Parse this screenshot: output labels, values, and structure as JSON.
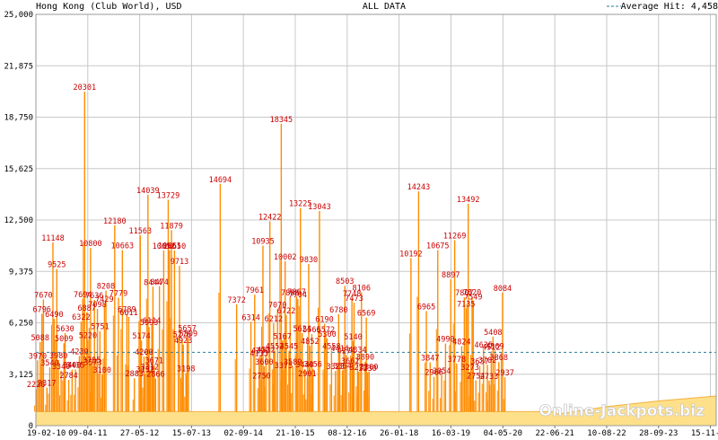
{
  "header": {
    "left_title": "Hong Kong (Club World), USD",
    "center_title": "ALL DATA",
    "legend_label": "Average Hit: 4,458"
  },
  "watermark": "Online-Jackpots.biz",
  "colors": {
    "background": "#ffffff",
    "grid": "#c8c8c8",
    "spike": "#ff8c00",
    "baseline_fill": "#ffe08a",
    "label": "#cc0000",
    "average_line": "#2a7d9c"
  },
  "chart_data": {
    "type": "area",
    "title": "ALL DATA",
    "subtitle": "Hong Kong (Club World), USD",
    "xlabel": "",
    "ylabel": "",
    "ylim": [
      0,
      25000
    ],
    "xlim": [
      "2010-02-19",
      "2024-12-31"
    ],
    "grid": true,
    "legend_placement": "top-right",
    "y_ticks": [
      "0",
      "3,125",
      "6,250",
      "9,375",
      "12,500",
      "15,625",
      "18,750",
      "21,875",
      "25,000"
    ],
    "y_tick_values": [
      0,
      3125,
      6250,
      9375,
      12500,
      15625,
      18750,
      21875,
      25000
    ],
    "x_ticks": [
      "19-02-10",
      "09-04-11",
      "27-05-12",
      "15-07-13",
      "02-09-14",
      "21-10-15",
      "08-12-16",
      "26-01-18",
      "16-03-19",
      "04-05-20",
      "22-06-21",
      "10-08-22",
      "28-09-23",
      "15-11-24"
    ],
    "x_tick_dates": [
      "2010-02-19",
      "2011-04-09",
      "2012-05-27",
      "2013-07-15",
      "2014-09-02",
      "2015-10-21",
      "2016-12-08",
      "2018-01-26",
      "2019-03-16",
      "2020-05-04",
      "2021-06-22",
      "2022-08-10",
      "2023-09-28",
      "2024-11-15"
    ],
    "average": {
      "label": "Average Hit: 4,458",
      "value": 4458
    },
    "baseline": {
      "x": [
        "2010-02-19",
        "2021-06-22",
        "2021-07-15",
        "2022-08-10",
        "2023-09-28",
        "2024-12-31"
      ],
      "y": [
        850,
        850,
        700,
        1150,
        1500,
        1800
      ]
    },
    "series": [
      {
        "points": [
          {
            "x": "2010-02-20",
            "y": 2226
          },
          {
            "x": "2010-03-05",
            "y": 3970
          },
          {
            "x": "2010-03-25",
            "y": 5088
          },
          {
            "x": "2010-04-08",
            "y": 6796
          },
          {
            "x": "2010-04-20",
            "y": 7670
          },
          {
            "x": "2010-05-18",
            "y": 2317
          },
          {
            "x": "2010-06-10",
            "y": 3540
          },
          {
            "x": "2010-07-05",
            "y": 11148
          },
          {
            "x": "2010-07-15",
            "y": 6490
          },
          {
            "x": "2010-08-05",
            "y": 9525
          },
          {
            "x": "2010-08-18",
            "y": 3980
          },
          {
            "x": "2010-09-08",
            "y": 3340
          },
          {
            "x": "2010-10-01",
            "y": 5009
          },
          {
            "x": "2010-10-10",
            "y": 5630
          },
          {
            "x": "2010-11-08",
            "y": 2784
          },
          {
            "x": "2010-12-05",
            "y": 3400
          },
          {
            "x": "2011-01-01",
            "y": 3415
          },
          {
            "x": "2011-02-01",
            "y": 4230
          },
          {
            "x": "2011-02-15",
            "y": 6322
          },
          {
            "x": "2011-02-28",
            "y": 7694
          },
          {
            "x": "2011-03-15",
            "y": 20301
          },
          {
            "x": "2011-04-01",
            "y": 6887
          },
          {
            "x": "2011-04-10",
            "y": 5220
          },
          {
            "x": "2011-05-01",
            "y": 10800
          },
          {
            "x": "2011-05-10",
            "y": 3705
          },
          {
            "x": "2011-05-20",
            "y": 3573
          },
          {
            "x": "2011-06-01",
            "y": 7636
          },
          {
            "x": "2011-06-25",
            "y": 7098
          },
          {
            "x": "2011-07-15",
            "y": 5751
          },
          {
            "x": "2011-08-01",
            "y": 3100
          },
          {
            "x": "2011-08-20",
            "y": 7429
          },
          {
            "x": "2011-09-01",
            "y": 8208
          },
          {
            "x": "2011-11-10",
            "y": 12180
          },
          {
            "x": "2011-12-10",
            "y": 7779
          },
          {
            "x": "2012-01-10",
            "y": 10663
          },
          {
            "x": "2012-02-15",
            "y": 6789
          },
          {
            "x": "2012-03-01",
            "y": 6611
          },
          {
            "x": "2012-04-15",
            "y": 2883
          },
          {
            "x": "2012-06-01",
            "y": 11563
          },
          {
            "x": "2012-06-10",
            "y": 5174
          },
          {
            "x": "2012-07-01",
            "y": 4200
          },
          {
            "x": "2012-07-10",
            "y": 3152
          },
          {
            "x": "2012-08-01",
            "y": 14039
          },
          {
            "x": "2012-08-10",
            "y": 5993
          },
          {
            "x": "2012-08-15",
            "y": 3312
          },
          {
            "x": "2012-09-01",
            "y": 6114
          },
          {
            "x": "2012-09-10",
            "y": 8444
          },
          {
            "x": "2012-09-20",
            "y": 3671
          },
          {
            "x": "2012-10-01",
            "y": 2866
          },
          {
            "x": "2012-11-01",
            "y": 8474
          },
          {
            "x": "2012-12-05",
            "y": 10652
          },
          {
            "x": "2013-01-10",
            "y": 13729
          },
          {
            "x": "2013-01-20",
            "y": 10661
          },
          {
            "x": "2013-02-05",
            "y": 11879
          },
          {
            "x": "2013-03-01",
            "y": 10650
          },
          {
            "x": "2013-04-10",
            "y": 9713
          },
          {
            "x": "2013-05-01",
            "y": 5276
          },
          {
            "x": "2013-05-10",
            "y": 4923
          },
          {
            "x": "2013-06-01",
            "y": 3198
          },
          {
            "x": "2013-06-10",
            "y": 5657
          },
          {
            "x": "2013-06-20",
            "y": 5309
          },
          {
            "x": "2014-03-01",
            "y": 14694
          },
          {
            "x": "2014-07-10",
            "y": 7372
          },
          {
            "x": "2014-11-01",
            "y": 6314
          },
          {
            "x": "2014-12-01",
            "y": 7961
          },
          {
            "x": "2015-01-05",
            "y": 4133
          },
          {
            "x": "2015-01-15",
            "y": 4290
          },
          {
            "x": "2015-01-25",
            "y": 2750
          },
          {
            "x": "2015-02-05",
            "y": 10935
          },
          {
            "x": "2015-02-15",
            "y": 3600
          },
          {
            "x": "2015-03-01",
            "y": 4332
          },
          {
            "x": "2015-04-01",
            "y": 12422
          },
          {
            "x": "2015-05-01",
            "y": 6212
          },
          {
            "x": "2015-05-10",
            "y": 4552
          },
          {
            "x": "2015-06-01",
            "y": 7070
          },
          {
            "x": "2015-07-01",
            "y": 18345
          },
          {
            "x": "2015-07-10",
            "y": 5167
          },
          {
            "x": "2015-07-20",
            "y": 3375
          },
          {
            "x": "2015-08-01",
            "y": 10002
          },
          {
            "x": "2015-08-10",
            "y": 6722
          },
          {
            "x": "2015-09-01",
            "y": 4545
          },
          {
            "x": "2015-09-10",
            "y": 7806
          },
          {
            "x": "2015-10-01",
            "y": 3589
          },
          {
            "x": "2015-11-01",
            "y": 7867
          },
          {
            "x": "2015-11-10",
            "y": 7704
          },
          {
            "x": "2015-12-01",
            "y": 13225
          },
          {
            "x": "2015-12-15",
            "y": 5624
          },
          {
            "x": "2016-01-05",
            "y": 3440
          },
          {
            "x": "2016-01-25",
            "y": 2901
          },
          {
            "x": "2016-02-05",
            "y": 9830
          },
          {
            "x": "2016-02-15",
            "y": 4852
          },
          {
            "x": "2016-03-01",
            "y": 5566
          },
          {
            "x": "2016-03-10",
            "y": 3456
          },
          {
            "x": "2016-05-01",
            "y": 13043
          },
          {
            "x": "2016-06-10",
            "y": 6190
          },
          {
            "x": "2016-06-20",
            "y": 5572
          },
          {
            "x": "2016-07-01",
            "y": 5300
          },
          {
            "x": "2016-08-05",
            "y": 4558
          },
          {
            "x": "2016-09-05",
            "y": 3323
          },
          {
            "x": "2016-10-01",
            "y": 6780
          },
          {
            "x": "2016-10-10",
            "y": 4414
          },
          {
            "x": "2016-11-01",
            "y": 3364
          },
          {
            "x": "2016-11-20",
            "y": 8503
          },
          {
            "x": "2016-12-01",
            "y": 4274
          },
          {
            "x": "2017-01-01",
            "y": 3662
          },
          {
            "x": "2017-01-15",
            "y": 7748
          },
          {
            "x": "2017-01-25",
            "y": 5140
          },
          {
            "x": "2017-02-01",
            "y": 7473
          },
          {
            "x": "2017-03-01",
            "y": 4334
          },
          {
            "x": "2017-03-10",
            "y": 3273
          },
          {
            "x": "2017-04-01",
            "y": 8106
          },
          {
            "x": "2017-05-01",
            "y": 3890
          },
          {
            "x": "2017-05-10",
            "y": 6569
          },
          {
            "x": "2017-05-20",
            "y": 3230
          },
          {
            "x": "2017-06-01",
            "y": 3300
          },
          {
            "x": "2018-05-01",
            "y": 10192
          },
          {
            "x": "2018-07-01",
            "y": 14243
          },
          {
            "x": "2018-09-01",
            "y": 6965
          },
          {
            "x": "2018-10-01",
            "y": 3847
          },
          {
            "x": "2018-11-01",
            "y": 2966
          },
          {
            "x": "2018-12-01",
            "y": 10675
          },
          {
            "x": "2019-01-01",
            "y": 3054
          },
          {
            "x": "2019-02-01",
            "y": 4990
          },
          {
            "x": "2019-03-15",
            "y": 8897
          },
          {
            "x": "2019-04-15",
            "y": 11269
          },
          {
            "x": "2019-05-01",
            "y": 3778
          },
          {
            "x": "2019-06-10",
            "y": 4824
          },
          {
            "x": "2019-07-01",
            "y": 7807
          },
          {
            "x": "2019-07-15",
            "y": 7135
          },
          {
            "x": "2019-08-01",
            "y": 13492
          },
          {
            "x": "2019-08-15",
            "y": 3273
          },
          {
            "x": "2019-09-01",
            "y": 7820
          },
          {
            "x": "2019-09-10",
            "y": 7549
          },
          {
            "x": "2019-10-01",
            "y": 2754
          },
          {
            "x": "2019-11-01",
            "y": 3637
          },
          {
            "x": "2019-12-01",
            "y": 4635
          },
          {
            "x": "2020-01-01",
            "y": 3702
          },
          {
            "x": "2020-01-15",
            "y": 2733
          },
          {
            "x": "2020-02-01",
            "y": 4512
          },
          {
            "x": "2020-02-15",
            "y": 5408
          },
          {
            "x": "2020-03-01",
            "y": 4569
          },
          {
            "x": "2020-04-01",
            "y": 3868
          },
          {
            "x": "2020-05-01",
            "y": 8084
          },
          {
            "x": "2020-05-20",
            "y": 2937
          }
        ]
      }
    ]
  }
}
